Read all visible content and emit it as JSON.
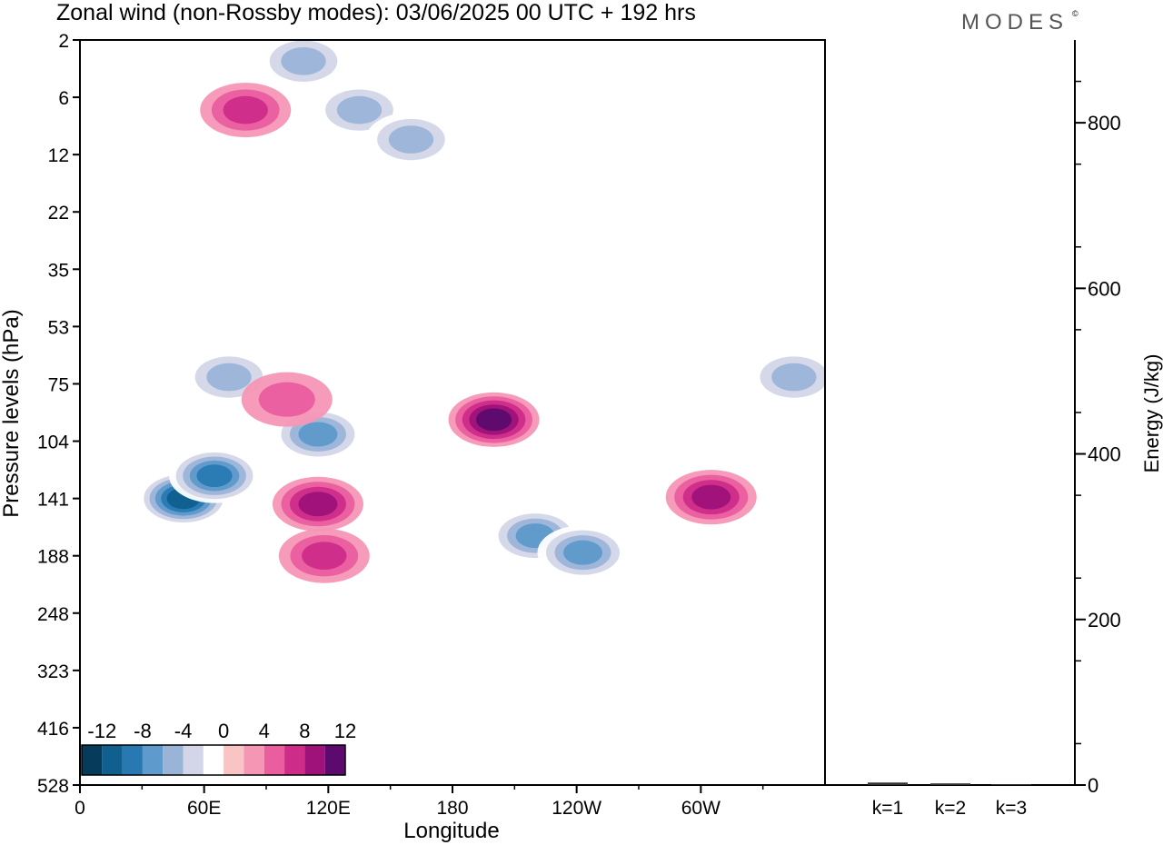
{
  "brand": {
    "name": "MODES",
    "mark": "©"
  },
  "chart_data": [
    {
      "type": "heatmap",
      "title": "Zonal wind (non-Rossby modes):  03/06/2025  00 UTC  + 192 hrs",
      "xlabel": "Longitude",
      "ylabel": "Pressure levels (hPa)",
      "x_ticks": [
        "0",
        "60E",
        "120E",
        "180",
        "120W",
        "60W"
      ],
      "y_ticks": [
        "2",
        "6",
        "12",
        "22",
        "35",
        "53",
        "75",
        "104",
        "141",
        "188",
        "248",
        "323",
        "416",
        "528"
      ],
      "colorbar": {
        "tick_labels": [
          "-12",
          "-8",
          "-4",
          "0",
          "4",
          "8",
          "12"
        ],
        "levels": [
          -14,
          -12,
          -10,
          -8,
          -6,
          -4,
          -2,
          2,
          4,
          6,
          8,
          10,
          12,
          14
        ],
        "colors": [
          "#073b5c",
          "#0f5f8f",
          "#2879b2",
          "#5e9acb",
          "#9ab4d8",
          "#d3d6e8",
          "#ffffff",
          "#f8c4c4",
          "#f596b5",
          "#ea5d9e",
          "#ce2c89",
          "#9e1279",
          "#5c0a6e"
        ]
      },
      "features": [
        {
          "lon": 50,
          "level": 141,
          "value": -12
        },
        {
          "lon": 65,
          "level": 125,
          "value": -10
        },
        {
          "lon": 115,
          "level": 100,
          "value": -8
        },
        {
          "lon": 72,
          "level": 72,
          "value": -6
        },
        {
          "lon": 135,
          "level": 7,
          "value": -6
        },
        {
          "lon": 108,
          "level": 3,
          "value": -6
        },
        {
          "lon": 160,
          "level": 10,
          "value": -6
        },
        {
          "lon": 115,
          "level": 145,
          "value": 8
        },
        {
          "lon": 118,
          "level": 188,
          "value": 6
        },
        {
          "lon": 200,
          "level": 92,
          "value": 10
        },
        {
          "lon": 220,
          "level": 170,
          "value": -8
        },
        {
          "lon": 243,
          "level": 185,
          "value": -8
        },
        {
          "lon": 305,
          "level": 140,
          "value": 8
        },
        {
          "lon": 80,
          "level": 7,
          "value": 6
        },
        {
          "lon": 100,
          "level": 82,
          "value": 4
        },
        {
          "lon": 345,
          "level": 72,
          "value": -6
        }
      ]
    },
    {
      "type": "bar",
      "categories": [
        "k=1",
        "k=2",
        "k=3"
      ],
      "values": [
        3,
        2,
        1
      ],
      "ylabel": "Energy (J/kg)",
      "ylim": [
        0,
        900
      ],
      "y_ticks": [
        0,
        200,
        400,
        600,
        800
      ]
    }
  ]
}
